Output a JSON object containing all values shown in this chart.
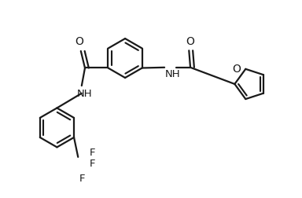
{
  "background_color": "#ffffff",
  "line_color": "#1a1a1a",
  "line_width": 1.6,
  "font_size": 9.5,
  "figsize": [
    3.84,
    2.52
  ],
  "dpi": 100,
  "xlim": [
    0,
    11
  ],
  "ylim": [
    0,
    7
  ]
}
